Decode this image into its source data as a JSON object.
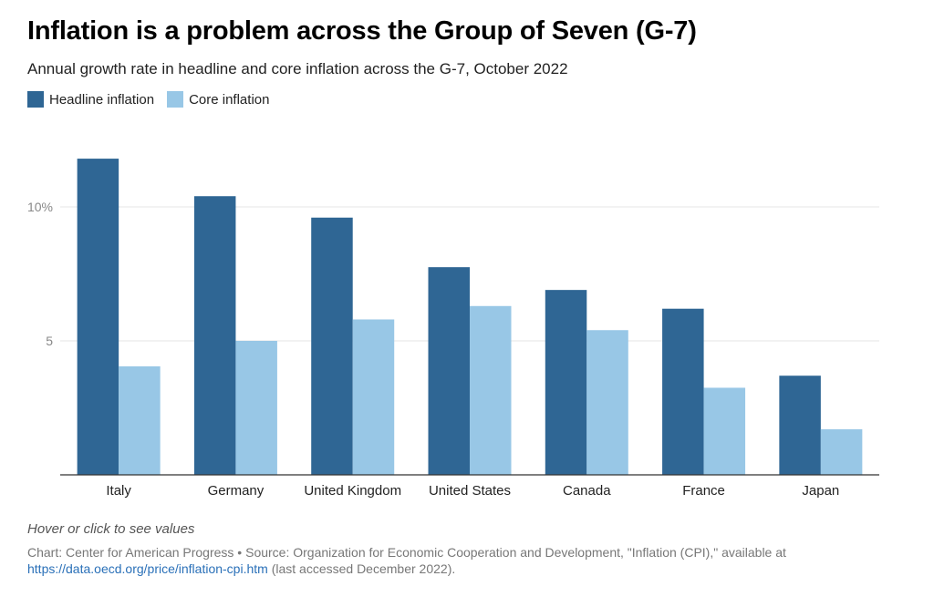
{
  "header": {
    "title": "Inflation is a problem across the Group of Seven (G-7)",
    "subtitle": "Annual growth rate in headline and core inflation across the G-7, October 2022"
  },
  "footer": {
    "hover_note": "Hover or click to see values",
    "source_text": "Chart: Center for American Progress • Source: Organization for Economic Cooperation and Development, \"Inflation (CPI),\" available at",
    "source_link": "https://data.oecd.org/price/inflation-cpi.htm",
    "source_suffix": "(last accessed December 2022)."
  },
  "chart_data": {
    "type": "bar",
    "title": "Inflation is a problem across the Group of Seven (G-7)",
    "subtitle": "Annual growth rate in headline and core inflation across the G-7, October 2022",
    "categories": [
      "Italy",
      "Germany",
      "United Kingdom",
      "United States",
      "Canada",
      "France",
      "Japan"
    ],
    "series": [
      {
        "name": "Headline inflation",
        "color": "#2f6694",
        "values": [
          11.8,
          10.4,
          9.6,
          7.75,
          6.9,
          6.2,
          3.7
        ]
      },
      {
        "name": "Core inflation",
        "color": "#98c7e6",
        "values": [
          4.05,
          5.0,
          5.8,
          6.3,
          5.4,
          3.25,
          1.7
        ]
      }
    ],
    "ylim": [
      0,
      12
    ],
    "yticks": [
      {
        "value": 5,
        "label": "5"
      },
      {
        "value": 10,
        "label": "10%"
      }
    ],
    "grid": true,
    "legend": "top-left",
    "xlabel": "",
    "ylabel": ""
  }
}
